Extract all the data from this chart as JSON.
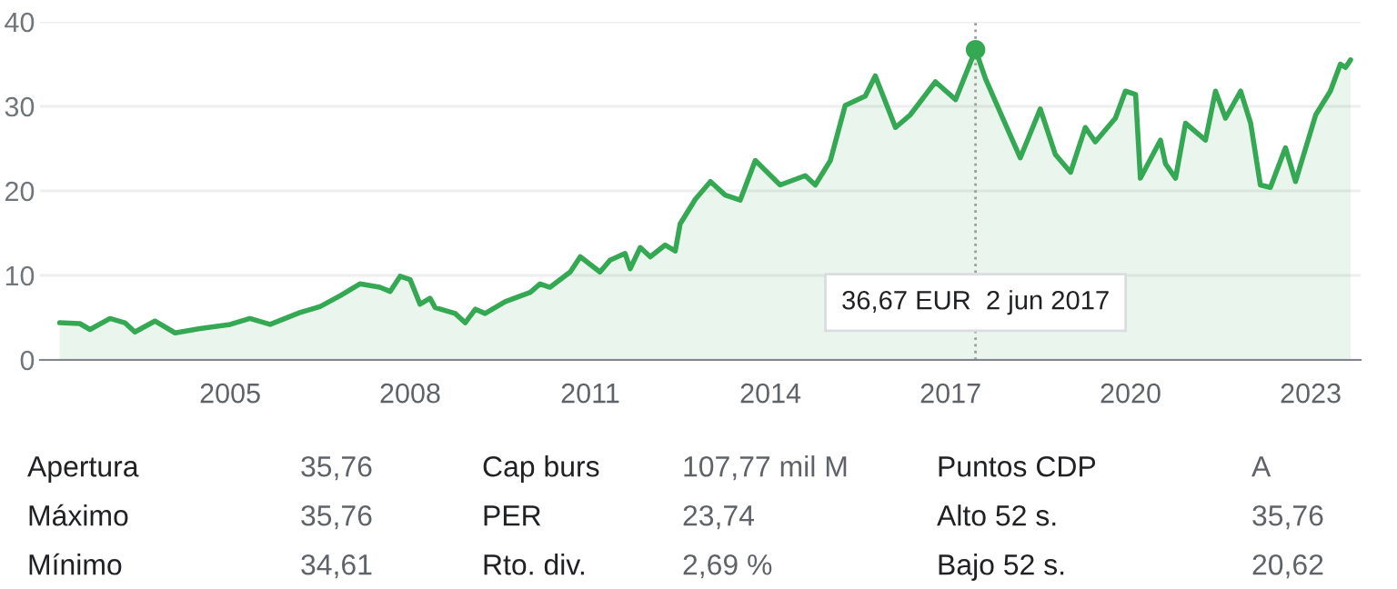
{
  "chart_data": {
    "type": "area",
    "x": [
      "2002-03",
      "2002-07",
      "2002-09",
      "2003-01",
      "2003-04",
      "2003-06",
      "2003-10",
      "2004-02",
      "2004-07",
      "2005-01",
      "2005-05",
      "2005-09",
      "2006-03",
      "2006-07",
      "2006-11",
      "2007-03",
      "2007-07",
      "2007-09",
      "2007-11",
      "2008-01",
      "2008-03",
      "2008-05",
      "2008-06",
      "2008-10",
      "2008-12",
      "2009-02",
      "2009-04",
      "2009-08",
      "2010-01",
      "2010-03",
      "2010-05",
      "2010-09",
      "2010-11",
      "2011-03",
      "2011-05",
      "2011-08",
      "2011-09",
      "2011-11",
      "2012-01",
      "2012-04",
      "2012-06",
      "2012-07",
      "2012-10",
      "2013-01",
      "2013-04",
      "2013-07",
      "2013-10",
      "2014-03",
      "2014-08",
      "2014-10",
      "2015-01",
      "2015-04",
      "2015-08",
      "2015-10",
      "2016-02",
      "2016-05",
      "2016-10",
      "2017-02",
      "2017-06-02",
      "2017-08",
      "2017-11",
      "2018-03",
      "2018-07",
      "2018-10",
      "2019-01",
      "2019-04",
      "2019-06",
      "2019-10",
      "2019-12",
      "2020-02",
      "2020-03",
      "2020-07",
      "2020-08",
      "2020-10",
      "2020-12",
      "2021-04",
      "2021-06",
      "2021-08",
      "2021-11",
      "2022-01",
      "2022-03",
      "2022-05",
      "2022-08",
      "2022-10",
      "2023-02",
      "2023-05",
      "2023-07",
      "2023-08",
      "2023-09"
    ],
    "series": [
      {
        "color": "#34a853",
        "values": [
          4.4,
          4.3,
          3.6,
          4.9,
          4.4,
          3.3,
          4.6,
          3.2,
          3.7,
          4.2,
          4.9,
          4.2,
          5.6,
          6.3,
          7.6,
          9.0,
          8.6,
          8.1,
          9.9,
          9.5,
          6.6,
          7.3,
          6.2,
          5.5,
          4.4,
          6.0,
          5.5,
          6.9,
          8.0,
          9.0,
          8.6,
          10.4,
          12.2,
          10.4,
          11.8,
          12.6,
          10.8,
          13.3,
          12.2,
          13.6,
          12.9,
          16.1,
          19.0,
          21.1,
          19.5,
          18.9,
          23.6,
          20.7,
          21.8,
          20.7,
          23.6,
          30.1,
          31.2,
          33.6,
          27.5,
          29.0,
          32.9,
          30.8,
          36.7,
          33.3,
          29.2,
          23.9,
          29.7,
          24.3,
          22.2,
          27.5,
          25.8,
          28.6,
          31.8,
          31.4,
          21.5,
          26.0,
          23.2,
          21.5,
          28.0,
          26.0,
          31.8,
          28.6,
          31.8,
          28.0,
          20.7,
          20.4,
          25.1,
          21.1,
          29.0,
          31.8,
          35.0,
          34.6,
          35.5
        ]
      },
      {
        "type": "scatter",
        "x": [
          "2017-06-02"
        ],
        "color": "#34a853",
        "marker": "circle",
        "values": [
          36.7
        ]
      }
    ],
    "xlim": [
      "2001-11",
      "2023-11"
    ],
    "xticks": [
      "2005",
      "2008",
      "2011",
      "2014",
      "2017",
      "2020",
      "2023"
    ],
    "ylim": [
      0,
      40
    ],
    "yticks": [
      0,
      10,
      20,
      30,
      40
    ],
    "grid": "y",
    "ref_lines": [
      {
        "axis": "x",
        "value": "2017-06-02",
        "color": "#9e9e9e",
        "line_style": "dotted"
      }
    ],
    "annotations": [
      "36,67 EUR  2 jun 2017",
      "Apertura",
      "35,76",
      "Cap burs",
      "107,77 mil M",
      "Puntos CDP",
      "A",
      "Máximo",
      "35,76",
      "PER",
      "23,74",
      "Alto 52 s.",
      "35,76",
      "Mínimo",
      "34,61",
      "Rto. div.",
      "2,69 %",
      "Bajo 52 s.",
      "20,62"
    ]
  }
}
